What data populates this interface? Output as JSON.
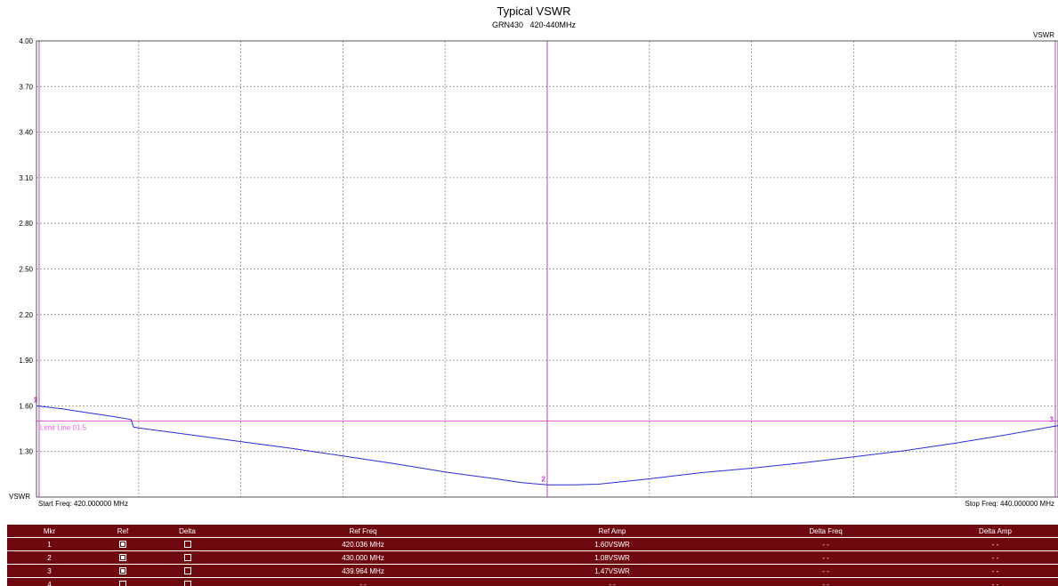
{
  "chart_data": {
    "type": "line",
    "title": "Typical VSWR",
    "subtitle": "GRN430   420-440MHz",
    "ylabel_top": "VSWR",
    "ylabel_bottom": "VSWR",
    "start_freq_label": "Start Freq: 420.000000 MHz",
    "stop_freq_label": "Stop Freq: 440.000000 MHz",
    "xlim": [
      420,
      440
    ],
    "ylim": [
      1.0,
      4.0
    ],
    "x_divisions": 10,
    "ytick_values": [
      1.3,
      1.6,
      1.9,
      2.2,
      2.5,
      2.8,
      3.1,
      3.4,
      3.7,
      4.0
    ],
    "ytick_labels": [
      "1.30",
      "1.60",
      "1.90",
      "2.20",
      "2.50",
      "2.80",
      "3.10",
      "3.40",
      "3.70",
      "4.00"
    ],
    "grid": true,
    "limit_line": {
      "label": "Limit Line 01.5",
      "value": 1.5,
      "color": "#e060e0"
    },
    "series": [
      {
        "color": "#2b2bd6",
        "x": [
          420,
          420.5,
          421,
          421.5,
          421.85,
          421.9,
          422,
          423,
          424,
          425,
          426,
          427,
          428,
          429,
          429.5,
          430,
          430.5,
          431,
          432,
          433,
          434,
          435,
          436,
          437,
          438,
          439,
          440
        ],
        "y": [
          1.6,
          1.58,
          1.555,
          1.53,
          1.51,
          1.46,
          1.455,
          1.41,
          1.365,
          1.32,
          1.27,
          1.22,
          1.165,
          1.12,
          1.095,
          1.08,
          1.08,
          1.085,
          1.12,
          1.16,
          1.19,
          1.225,
          1.265,
          1.305,
          1.355,
          1.41,
          1.47
        ]
      }
    ],
    "markers": [
      {
        "id": "1",
        "x": 420.036,
        "y": 1.6
      },
      {
        "id": "2",
        "x": 430.0,
        "y": 1.08
      },
      {
        "id": "3",
        "x": 439.964,
        "y": 1.47
      }
    ],
    "marker_line_color": "#c040c0"
  },
  "marker_table": {
    "headers": [
      "Mkr",
      "Ref",
      "Delta",
      "Ref Freq",
      "Ref Amp",
      "Delta Freq",
      "Delta Amp"
    ],
    "rows": [
      {
        "mkr": "1",
        "ref": true,
        "delta": false,
        "ref_freq": "420.036 MHz",
        "ref_amp": "1.60VSWR",
        "delta_freq": "- -",
        "delta_amp": "- -"
      },
      {
        "mkr": "2",
        "ref": true,
        "delta": false,
        "ref_freq": "430.000 MHz",
        "ref_amp": "1.08VSWR",
        "delta_freq": "- -",
        "delta_amp": "- -"
      },
      {
        "mkr": "3",
        "ref": true,
        "delta": false,
        "ref_freq": "439.964 MHz",
        "ref_amp": "1.47VSWR",
        "delta_freq": "- -",
        "delta_amp": "- -"
      },
      {
        "mkr": "4",
        "ref": false,
        "delta": false,
        "ref_freq": "- -",
        "ref_amp": "- -",
        "delta_freq": "- -",
        "delta_amp": "- -"
      }
    ],
    "colors": {
      "background": "#6e0a0f",
      "text": "#ffffff"
    }
  }
}
